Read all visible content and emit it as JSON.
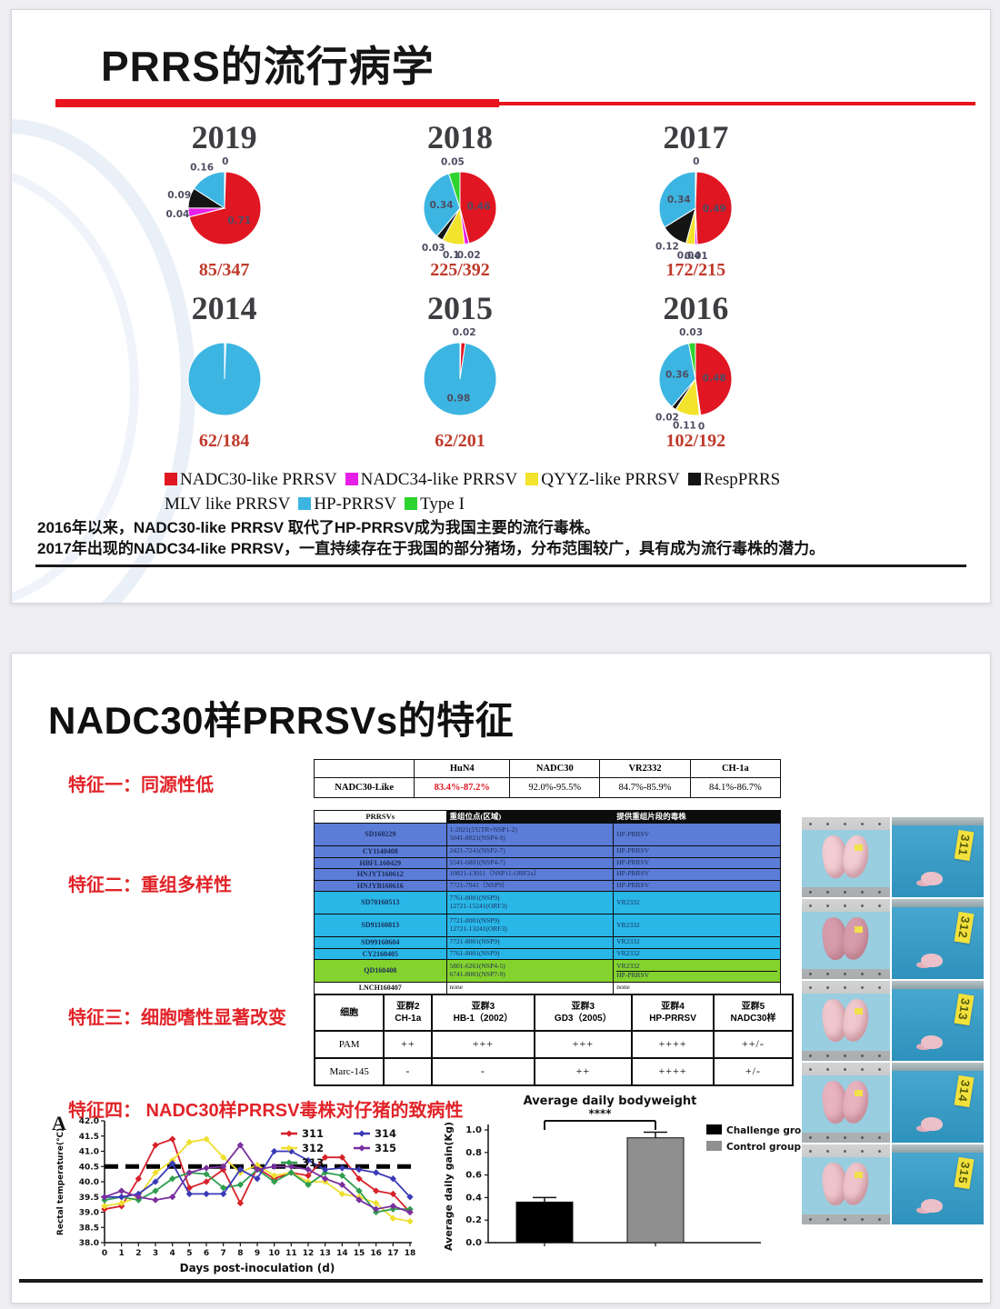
{
  "slide1": {
    "title": "PRRS的流行病学",
    "accent_color": "#e8131d",
    "pies": [
      {
        "year": "2019",
        "fraction": "85/347",
        "slices": [
          {
            "value": 0.005,
            "color": "#ffffff",
            "label": "0"
          },
          {
            "value": 0.71,
            "color": "#e01622",
            "label": "0.71"
          },
          {
            "value": 0.04,
            "color": "#e620e6",
            "label": "0.04"
          },
          {
            "value": 0.09,
            "color": "#141414",
            "label": "0.09"
          },
          {
            "value": 0.16,
            "color": "#3cb5e2",
            "label": "0.16"
          }
        ]
      },
      {
        "year": "2018",
        "fraction": "225/392",
        "slices": [
          {
            "value": 0.46,
            "color": "#e01622",
            "label": "0.46"
          },
          {
            "value": 0.02,
            "color": "#e620e6",
            "label": "0.02"
          },
          {
            "value": 0.1,
            "color": "#f3e32c",
            "label": "0.1"
          },
          {
            "value": 0.03,
            "color": "#141414",
            "label": "0.03"
          },
          {
            "value": 0.34,
            "color": "#3cb5e2",
            "label": "0.34"
          },
          {
            "value": 0.05,
            "color": "#2ed32e",
            "label": "0.05"
          }
        ]
      },
      {
        "year": "2017",
        "fraction": "172/215",
        "slices": [
          {
            "value": 0.005,
            "color": "#ffffff",
            "label": "0"
          },
          {
            "value": 0.49,
            "color": "#e01622",
            "label": "0.49"
          },
          {
            "value": 0.01,
            "color": "#e620e6",
            "label": "0.01"
          },
          {
            "value": 0.04,
            "color": "#f3e32c",
            "label": "0.04"
          },
          {
            "value": 0.12,
            "color": "#141414",
            "label": "0.12"
          },
          {
            "value": 0.34,
            "color": "#3cb5e2",
            "label": "0.34"
          }
        ]
      },
      {
        "year": "2014",
        "fraction": "62/184",
        "slices": [
          {
            "value": 0.006,
            "color": "#ffffff",
            "label": ""
          },
          {
            "value": 0.994,
            "color": "#3cb5e2",
            "label": ""
          }
        ]
      },
      {
        "year": "2015",
        "fraction": "62/201",
        "slices": [
          {
            "value": 0.004,
            "color": "#ffffff",
            "label": ""
          },
          {
            "value": 0.02,
            "color": "#e01622",
            "label": "0.02"
          },
          {
            "value": 0.976,
            "color": "#3cb5e2",
            "label": "0.98"
          }
        ]
      },
      {
        "year": "2016",
        "fraction": "102/192",
        "slices": [
          {
            "value": 0.48,
            "color": "#e01622",
            "label": "0.48"
          },
          {
            "value": 0.005,
            "color": "#ffffff",
            "label": "0"
          },
          {
            "value": 0.11,
            "color": "#f3e32c",
            "label": "0.11"
          },
          {
            "value": 0.02,
            "color": "#141414",
            "label": "0.02"
          },
          {
            "value": 0.36,
            "color": "#3cb5e2",
            "label": "0.36"
          },
          {
            "value": 0.03,
            "color": "#2ed32e",
            "label": "0.03"
          }
        ]
      }
    ],
    "legend": [
      {
        "label": "NADC30-like PRRSV",
        "color": "#e01622"
      },
      {
        "label": "NADC34-like PRRSV",
        "color": "#e620e6"
      },
      {
        "label": "QYYZ-like PRRSV",
        "color": "#f3e32c"
      },
      {
        "label": "RespPRRS MLV like PRRSV",
        "color": "#141414"
      },
      {
        "label": "HP-PRRSV",
        "color": "#3cb5e2"
      },
      {
        "label": "Type I",
        "color": "#2ed32e"
      }
    ],
    "notes": [
      "2016年以来，NADC30-like PRRSV 取代了HP-PRRSV成为我国主要的流行毒株。",
      "2017年出现的NADC34-like PRRSV，一直持续存在于我国的部分猪场，分布范围较广，具有成为流行毒株的潜力。"
    ]
  },
  "slide2": {
    "title": "NADC30样PRRSVs的特征",
    "features": [
      "特征一：同源性低",
      "特征二：重组多样性",
      "特征三：细胞嗜性显著改变",
      "特征四： NADC30样PRRSV毒株对仔猪的致病性"
    ],
    "homology_table": {
      "headers": [
        "",
        "HuN4",
        "NADC30",
        "VR2332",
        "CH-1a"
      ],
      "row_label": "NADC30-Like",
      "values": [
        "83.4%-87.2%",
        "92.0%-95.5%",
        "84.7%-85.9%",
        "84.1%-86.7%"
      ],
      "highlight_index": 0,
      "highlight_color": "#e01622"
    },
    "recombination_table": {
      "headers": [
        "PRRSVs",
        "重组位点(区域)",
        "提供重组片段的毒株"
      ],
      "rows": [
        {
          "strain": "SD160229",
          "region": "1-2021(5'UTR+NSP1-2)\n5041-8021(NSP4-9)",
          "donor": "HP-PRRSV",
          "bg": "#5b7dd8"
        },
        {
          "strain": "CY1140408",
          "region": "2421-7241(NSP2-7)",
          "donor": "HP-PRRSV",
          "bg": "#5b7dd8"
        },
        {
          "strain": "HBFL160429",
          "region": "5541-6801(NSP4-7)",
          "donor": "HP-PRRSV",
          "bg": "#5b7dd8"
        },
        {
          "strain": "HNJYT160612",
          "region": "10821-13011（NSP11-ORF2a）",
          "donor": "HP-PRRSV",
          "bg": "#5b7dd8"
        },
        {
          "strain": "HNJYB160616",
          "region": "7721-7941（NSP9）",
          "donor": "HP-PRRSV",
          "bg": "#5b7dd8"
        },
        {
          "strain": "SD70160513",
          "region": "7761-8001(NSP9)\n12721-15241(ORF3)",
          "donor": "VR2332",
          "bg": "#29b7e8"
        },
        {
          "strain": "SD91160813",
          "region": "7721-8001(NSP9)\n12721-13241(ORF3)",
          "donor": "VR2332",
          "bg": "#29b7e8"
        },
        {
          "strain": "SD99160604",
          "region": "7721-8001(NSP9)",
          "donor": "VR2332",
          "bg": "#29b7e8"
        },
        {
          "strain": "CY2160405",
          "region": "7761-8001(NSP9)",
          "donor": "VR2332",
          "bg": "#29b7e8"
        },
        {
          "strain": "QD160408",
          "region": "5801-6261(NSP4-5)\n6741-8001(NSP7-9)",
          "donor": "VR2332\nHP-PRRSV",
          "bg": "#84d22e"
        },
        {
          "strain": "LNCH160407",
          "region": "none",
          "donor": "none",
          "bg": "#ffffff"
        }
      ]
    },
    "tropism_table": {
      "headers": [
        "细胞",
        "亚群2\nCH-1a",
        "亚群3\nHB-1（2002）",
        "亚群3\nGD3（2005）",
        "亚群4\nHP-PRRSV",
        "亚群5\nNADC30样"
      ],
      "rows": [
        [
          "PAM",
          "++",
          "+++",
          "+++",
          "++++",
          "++/-"
        ],
        [
          "Marc-145",
          "-",
          "-",
          "++",
          "++++",
          "+/-"
        ]
      ]
    },
    "chart_data": [
      {
        "type": "line",
        "panel_label": "A",
        "xlabel": "Days post-inoculation (d)",
        "ylabel": "Rectal temperature(℃)",
        "ylim": [
          38.0,
          42.0
        ],
        "ytick_step": 0.5,
        "x": [
          0,
          1,
          2,
          3,
          4,
          5,
          6,
          7,
          8,
          9,
          10,
          11,
          12,
          13,
          14,
          15,
          16,
          17,
          18
        ],
        "threshold": 40.5,
        "legend_position": "top-right",
        "series": [
          {
            "name": "311",
            "color": "#d62128",
            "values": [
              39.1,
              39.2,
              40.1,
              41.2,
              41.4,
              39.8,
              40.0,
              40.4,
              39.3,
              40.45,
              40.1,
              40.3,
              40.2,
              40.8,
              40.8,
              40.1,
              39.7,
              39.6,
              39.0
            ]
          },
          {
            "name": "312",
            "color": "#efdf2e",
            "values": [
              39.2,
              39.3,
              39.5,
              40.3,
              40.7,
              41.3,
              41.4,
              40.8,
              40.3,
              40.55,
              40.2,
              40.3,
              40.0,
              40.0,
              39.6,
              39.5,
              39.3,
              38.8,
              38.7
            ]
          },
          {
            "name": "313",
            "color": "#2f9e4e",
            "values": [
              39.4,
              39.5,
              39.4,
              39.7,
              40.1,
              40.3,
              40.25,
              39.8,
              39.9,
              40.4,
              40.0,
              40.3,
              39.9,
              40.3,
              40.2,
              39.7,
              39.0,
              39.1,
              39.1
            ]
          },
          {
            "name": "314",
            "color": "#3a3ab8",
            "values": [
              39.5,
              39.5,
              39.6,
              40.0,
              40.6,
              39.6,
              39.6,
              39.6,
              40.4,
              40.1,
              41.0,
              41.0,
              40.7,
              40.4,
              40.45,
              40.4,
              40.3,
              40.1,
              39.5
            ]
          },
          {
            "name": "315",
            "color": "#7a2f9e",
            "values": [
              39.5,
              39.7,
              39.5,
              39.4,
              39.5,
              40.3,
              40.45,
              40.5,
              41.2,
              40.4,
              40.5,
              40.5,
              40.4,
              40.1,
              39.9,
              39.4,
              39.1,
              39.2,
              39.0
            ]
          }
        ]
      },
      {
        "type": "bar",
        "title": "Average daily bodyweight",
        "ylabel": "Average daily gain(Kg)",
        "ylim": [
          0,
          1.0
        ],
        "ytick_step": 0.2,
        "significance": "****",
        "bars": [
          {
            "name": "Challenge group",
            "value": 0.36,
            "error": 0.04,
            "color": "#000000"
          },
          {
            "name": "Control group",
            "value": 0.93,
            "error": 0.05,
            "color": "#8f8f8f"
          }
        ]
      }
    ],
    "photo_panel": {
      "labels": [
        "311",
        "312",
        "313",
        "314",
        "315"
      ]
    }
  }
}
